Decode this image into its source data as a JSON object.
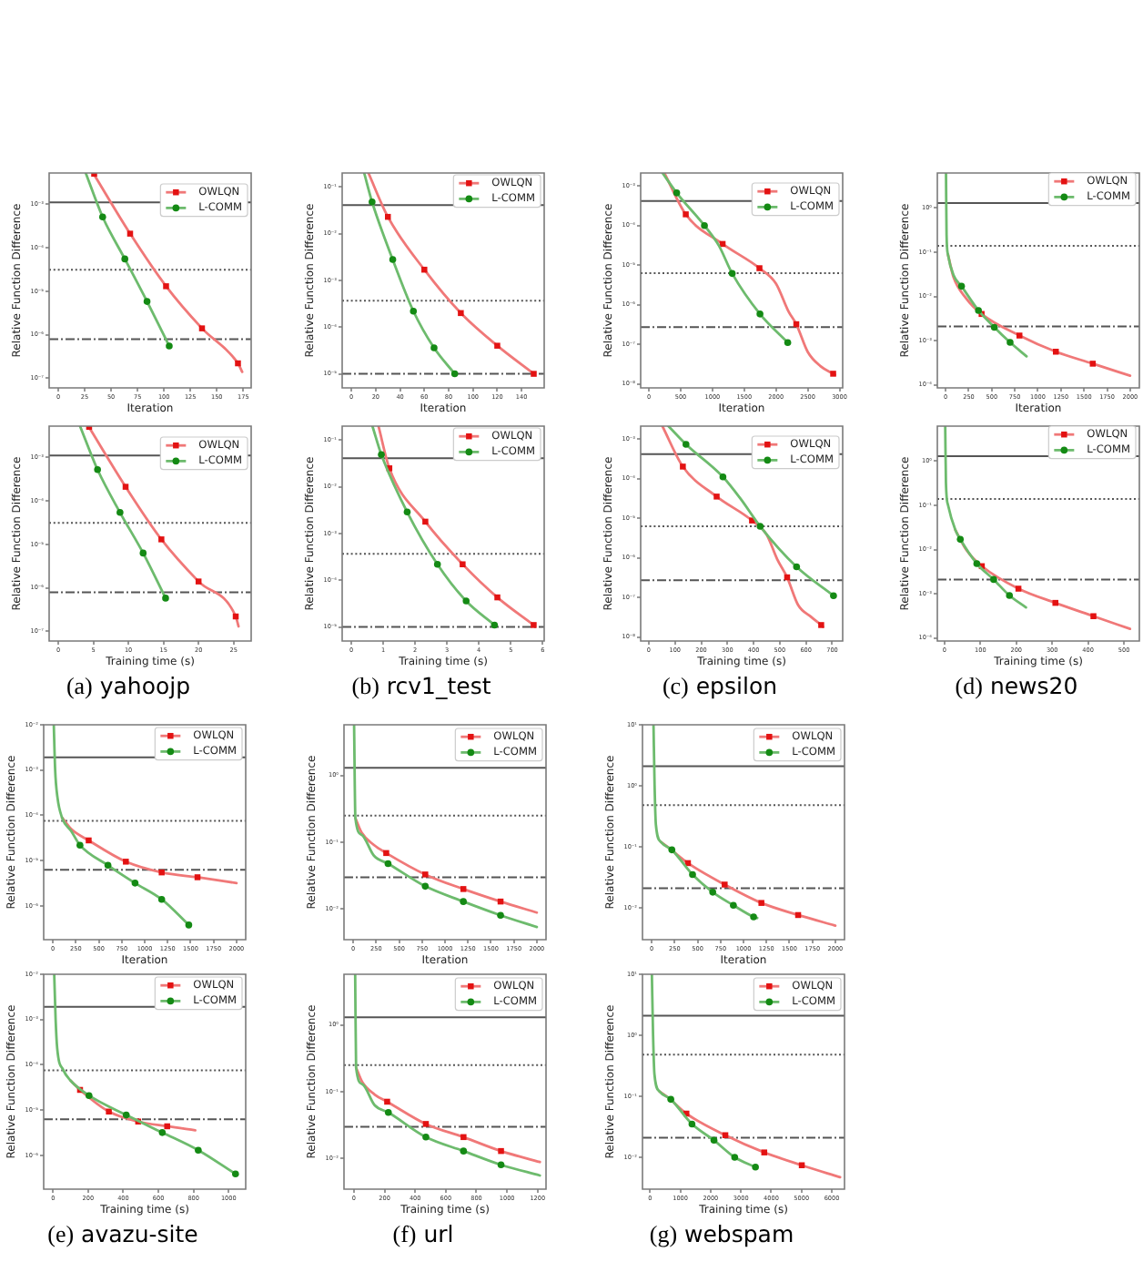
{
  "chart_data": [
    {
      "type": "line",
      "xlabel": "Iteration",
      "ylabel": "Relative Function Difference",
      "log": "y",
      "legend": "top right",
      "xlim": [
        -8.6,
        182.5
      ],
      "xticks": [
        0,
        25,
        50,
        75,
        100,
        125,
        150,
        175
      ],
      "ylim": [
        6.2e-08,
        0.0052
      ],
      "yticks": [
        {
          "value": 0.001,
          "label": "10⁻³"
        },
        {
          "value": 0.0001,
          "label": "10⁻⁴"
        },
        {
          "value": 1e-05,
          "label": "10⁻⁵"
        },
        {
          "value": 1e-06,
          "label": "10⁻⁶"
        },
        {
          "value": 1e-07,
          "label": "10⁻⁷"
        }
      ],
      "ref_lines": [
        {
          "axis": "y",
          "value": 0.0011,
          "color": "#555555",
          "line_style": "solid"
        },
        {
          "axis": "y",
          "value": 3.1e-05,
          "color": "#555555",
          "line_style": "dotted"
        },
        {
          "axis": "y",
          "value": 7.9e-07,
          "color": "#555555",
          "line_style": "dashdot"
        }
      ],
      "series": [
        {
          "name": "OWLQN",
          "type": "line",
          "color": "#f07878",
          "x": [
            33,
            68,
            102,
            136,
            170,
            174
          ],
          "values": [
            0.0052,
            0.00021,
            1.3e-05,
            1.4e-06,
            2.2e-07,
            1.4e-07
          ]
        },
        {
          "type": "scatter",
          "color": "#e31212",
          "marker": "square",
          "x": [
            34,
            68,
            102,
            136,
            170
          ],
          "values": [
            0.005,
            0.00021,
            1.3e-05,
            1.4e-06,
            2.2e-07
          ]
        },
        {
          "name": "L-COMM",
          "type": "line",
          "color": "#6dbb6d",
          "x": [
            26,
            42,
            63,
            84,
            105
          ],
          "values": [
            0.0052,
            0.00051,
            5.5e-05,
            5.8e-06,
            5.5e-07
          ]
        },
        {
          "type": "scatter",
          "color": "#148a14",
          "marker": "circle",
          "x": [
            42,
            63,
            84,
            105
          ],
          "values": [
            0.00051,
            5.5e-05,
            5.8e-06,
            5.5e-07
          ]
        }
      ]
    },
    {
      "type": "line",
      "xlabel": "Iteration",
      "ylabel": "Relative Function Difference",
      "log": "y",
      "legend": "top right",
      "xlim": [
        -7.6,
        158.6
      ],
      "xticks": [
        0,
        20,
        40,
        60,
        80,
        100,
        120,
        140
      ],
      "ylim": [
        5e-06,
        0.2
      ],
      "yticks": [
        {
          "value": 0.1,
          "label": "10⁻¹"
        },
        {
          "value": 0.01,
          "label": "10⁻²"
        },
        {
          "value": 0.001,
          "label": "10⁻³"
        },
        {
          "value": 0.0001,
          "label": "10⁻⁴"
        },
        {
          "value": 1e-05,
          "label": "10⁻⁵"
        }
      ],
      "ref_lines": [
        {
          "axis": "y",
          "value": 0.041,
          "color": "#555555",
          "line_style": "solid"
        },
        {
          "axis": "y",
          "value": 0.00037,
          "color": "#555555",
          "line_style": "dotted"
        },
        {
          "axis": "y",
          "value": 1e-05,
          "color": "#555555",
          "line_style": "dashdot"
        }
      ],
      "series": [
        {
          "name": "OWLQN",
          "type": "line",
          "color": "#f07878",
          "x": [
            14,
            30,
            60,
            90,
            120,
            150
          ],
          "values": [
            0.2,
            0.023,
            0.0017,
            0.0002,
            4e-05,
            1e-05
          ]
        },
        {
          "type": "scatter",
          "color": "#e31212",
          "marker": "square",
          "x": [
            30,
            60,
            90,
            120,
            150
          ],
          "values": [
            0.023,
            0.0017,
            0.0002,
            4e-05,
            1e-05
          ]
        },
        {
          "name": "L-COMM",
          "type": "line",
          "color": "#6dbb6d",
          "x": [
            10.5,
            17,
            34,
            51,
            68,
            85
          ],
          "values": [
            0.2,
            0.048,
            0.0028,
            0.00022,
            3.6e-05,
            1e-05
          ]
        },
        {
          "type": "scatter",
          "color": "#148a14",
          "marker": "circle",
          "x": [
            17,
            34,
            51,
            68,
            85
          ],
          "values": [
            0.048,
            0.0028,
            0.00022,
            3.6e-05,
            1e-05
          ]
        }
      ]
    },
    {
      "type": "line",
      "xlabel": "Iteration",
      "ylabel": "Relative Function Difference",
      "log": "y",
      "legend": "top right",
      "xlim": [
        -130,
        3050
      ],
      "xticks": [
        0,
        500,
        1000,
        1500,
        2000,
        2500,
        3000
      ],
      "ylim": [
        7.9e-09,
        0.0021
      ],
      "yticks": [
        {
          "value": 0.001,
          "label": "10⁻³"
        },
        {
          "value": 0.0001,
          "label": "10⁻⁴"
        },
        {
          "value": 1e-05,
          "label": "10⁻⁵"
        },
        {
          "value": 1e-06,
          "label": "10⁻⁶"
        },
        {
          "value": 1e-07,
          "label": "10⁻⁷"
        },
        {
          "value": 1e-08,
          "label": "10⁻⁸"
        }
      ],
      "ref_lines": [
        {
          "axis": "y",
          "value": 0.00041,
          "color": "#555555",
          "line_style": "solid"
        },
        {
          "axis": "y",
          "value": 6.2e-06,
          "color": "#555555",
          "line_style": "dotted"
        },
        {
          "axis": "y",
          "value": 2.7e-07,
          "color": "#555555",
          "line_style": "dashdot"
        }
      ],
      "series": [
        {
          "name": "OWLQN",
          "type": "line",
          "color": "#f07878",
          "x": [
            243,
            580,
            1160,
            1740,
            2000,
            2200,
            2320,
            2500,
            2700,
            2900,
            2930
          ],
          "values": [
            0.0021,
            0.00019,
            3.4e-05,
            8.3e-06,
            3.4e-06,
            6.6e-07,
            3.2e-07,
            6.4e-08,
            2.8e-08,
            1.8e-08,
            1.7e-08
          ]
        },
        {
          "type": "scatter",
          "color": "#e31212",
          "marker": "square",
          "x": [
            580,
            1160,
            1740,
            2320,
            2900
          ],
          "values": [
            0.00019,
            3.4e-05,
            8.3e-06,
            3.2e-07,
            1.8e-08
          ]
        },
        {
          "name": "L-COMM",
          "type": "line",
          "color": "#6dbb6d",
          "x": [
            214,
            437,
            874,
            1100,
            1311,
            1748,
            2185
          ],
          "values": [
            0.0021,
            0.00066,
            9.9e-05,
            3.1e-05,
            6.1e-06,
            5.8e-07,
            1.1e-07
          ]
        },
        {
          "type": "scatter",
          "color": "#148a14",
          "marker": "circle",
          "x": [
            437,
            874,
            1311,
            1748,
            2185
          ],
          "values": [
            0.00066,
            9.9e-05,
            6.1e-06,
            5.8e-07,
            1.1e-07
          ]
        }
      ]
    },
    {
      "type": "line",
      "xlabel": "Iteration",
      "ylabel": "Relative Function Difference",
      "log": "y",
      "legend": "top right",
      "xlim": [
        -90,
        2100
      ],
      "xticks": [
        0,
        250,
        500,
        750,
        1000,
        1250,
        1500,
        1750,
        2000
      ],
      "ylim": [
        8.5e-05,
        6.2
      ],
      "yticks": [
        {
          "value": 1,
          "label": "10⁰"
        },
        {
          "value": 0.1,
          "label": "10⁻¹"
        },
        {
          "value": 0.01,
          "label": "10⁻²"
        },
        {
          "value": 0.001,
          "label": "10⁻³"
        },
        {
          "value": 0.0001,
          "label": "10⁻⁴"
        }
      ],
      "ref_lines": [
        {
          "axis": "y",
          "value": 1.3,
          "color": "#555555",
          "line_style": "solid"
        },
        {
          "axis": "y",
          "value": 0.14,
          "color": "#555555",
          "line_style": "dotted"
        },
        {
          "axis": "y",
          "value": 0.0021,
          "color": "#555555",
          "line_style": "dashdot"
        }
      ],
      "series": [
        {
          "name": "OWLQN",
          "type": "line",
          "color": "#f07878",
          "x": [
            25,
            86,
            218,
            390,
            800,
            1195,
            1595,
            2000
          ],
          "values": [
            0.089,
            0.027,
            0.0093,
            0.004,
            0.0013,
            0.00056,
            0.0003,
            0.00016
          ]
        },
        {
          "type": "scatter",
          "color": "#e31212",
          "marker": "square",
          "x": [
            390,
            800,
            1195,
            1595
          ],
          "values": [
            0.004,
            0.0013,
            0.00056,
            0.0003
          ]
        },
        {
          "name": "L-COMM",
          "type": "line",
          "color": "#6dbb6d",
          "x": [
            4,
            10,
            25,
            86,
            172,
            356,
            528,
            699,
            877
          ],
          "values": [
            6.0,
            0.25,
            0.089,
            0.03,
            0.017,
            0.0048,
            0.002,
            0.00091,
            0.00044
          ]
        },
        {
          "type": "scatter",
          "color": "#148a14",
          "marker": "circle",
          "x": [
            172,
            356,
            528,
            699
          ],
          "values": [
            0.017,
            0.0048,
            0.002,
            0.00091
          ]
        }
      ]
    },
    {
      "type": "line",
      "xlabel": "Training time (s)",
      "ylabel": "Relative Function Difference",
      "log": "y",
      "legend": "top right",
      "xlim": [
        -1.3,
        27.5
      ],
      "xticks": [
        0,
        5,
        10,
        15,
        20,
        25
      ],
      "ylim": [
        6.2e-08,
        0.0052
      ],
      "yticks": [
        {
          "value": 0.001,
          "label": "10⁻³"
        },
        {
          "value": 0.0001,
          "label": "10⁻⁴"
        },
        {
          "value": 1e-05,
          "label": "10⁻⁵"
        },
        {
          "value": 1e-06,
          "label": "10⁻⁶"
        },
        {
          "value": 1e-07,
          "label": "10⁻⁷"
        }
      ],
      "ref_lines": [
        {
          "axis": "y",
          "value": 0.0011,
          "color": "#555555",
          "line_style": "solid"
        },
        {
          "axis": "y",
          "value": 3.1e-05,
          "color": "#555555",
          "line_style": "dotted"
        },
        {
          "axis": "y",
          "value": 7.9e-07,
          "color": "#555555",
          "line_style": "dashdot"
        }
      ],
      "series": [
        {
          "name": "OWLQN",
          "type": "line",
          "color": "#f07878",
          "x": [
            4.3,
            9.6,
            14.7,
            20.0,
            25.3,
            25.7
          ],
          "values": [
            0.0052,
            0.00021,
            1.3e-05,
            1.4e-06,
            2.2e-07,
            1.3e-07
          ]
        },
        {
          "type": "scatter",
          "color": "#e31212",
          "marker": "square",
          "x": [
            4.4,
            9.6,
            14.7,
            20.0,
            25.3
          ],
          "values": [
            0.005,
            0.00021,
            1.3e-05,
            1.4e-06,
            2.2e-07
          ]
        },
        {
          "name": "L-COMM",
          "type": "line",
          "color": "#6dbb6d",
          "x": [
            3.1,
            5.6,
            8.8,
            12.1,
            15.3
          ],
          "values": [
            0.0052,
            0.00052,
            5.4e-05,
            6.3e-06,
            5.8e-07
          ]
        },
        {
          "type": "scatter",
          "color": "#148a14",
          "marker": "circle",
          "x": [
            5.6,
            8.8,
            12.1,
            15.3
          ],
          "values": [
            0.00052,
            5.4e-05,
            6.3e-06,
            5.8e-07
          ]
        }
      ],
      "annotations": [
        "(a) yahoojp"
      ]
    },
    {
      "type": "line",
      "xlabel": "Training time (s)",
      "ylabel": "Relative Function Difference",
      "log": "y",
      "legend": "top right",
      "xlim": [
        -0.29,
        6.05
      ],
      "xticks": [
        0,
        1,
        2,
        3,
        4,
        5,
        6
      ],
      "ylim": [
        5e-06,
        0.2
      ],
      "yticks": [
        {
          "value": 0.1,
          "label": "10⁻¹"
        },
        {
          "value": 0.01,
          "label": "10⁻²"
        },
        {
          "value": 0.001,
          "label": "10⁻³"
        },
        {
          "value": 0.0001,
          "label": "10⁻⁴"
        },
        {
          "value": 1e-05,
          "label": "10⁻⁵"
        }
      ],
      "ref_lines": [
        {
          "axis": "y",
          "value": 0.041,
          "color": "#555555",
          "line_style": "solid"
        },
        {
          "axis": "y",
          "value": 0.00037,
          "color": "#555555",
          "line_style": "dotted"
        },
        {
          "axis": "y",
          "value": 1e-05,
          "color": "#555555",
          "line_style": "dashdot"
        }
      ],
      "series": [
        {
          "name": "OWLQN",
          "type": "line",
          "color": "#f07878",
          "x": [
            0.85,
            1.19,
            2.32,
            3.49,
            4.58,
            5.72
          ],
          "values": [
            0.2,
            0.025,
            0.0018,
            0.00022,
            4.3e-05,
            1.1e-05
          ]
        },
        {
          "type": "scatter",
          "color": "#e31212",
          "marker": "square",
          "x": [
            1.19,
            2.32,
            3.49,
            4.58,
            5.72
          ],
          "values": [
            0.025,
            0.0018,
            0.00022,
            4.3e-05,
            1.1e-05
          ]
        },
        {
          "name": "L-COMM",
          "type": "line",
          "color": "#6dbb6d",
          "x": [
            0.66,
            0.94,
            1.75,
            2.7,
            3.6,
            4.49
          ],
          "values": [
            0.2,
            0.049,
            0.0029,
            0.00022,
            3.6e-05,
            1.1e-05
          ]
        },
        {
          "type": "scatter",
          "color": "#148a14",
          "marker": "circle",
          "x": [
            0.94,
            1.75,
            2.7,
            3.6,
            4.49
          ],
          "values": [
            0.049,
            0.0029,
            0.00022,
            3.6e-05,
            1.1e-05
          ]
        }
      ],
      "annotations": [
        "(b) rcv1_test"
      ]
    },
    {
      "type": "line",
      "xlabel": "Training time (s)",
      "ylabel": "Relative Function Difference",
      "log": "y",
      "legend": "top right",
      "xlim": [
        -31,
        740
      ],
      "xticks": [
        0,
        100,
        200,
        300,
        400,
        500,
        600,
        700
      ],
      "ylim": [
        7.9e-09,
        0.0021
      ],
      "yticks": [
        {
          "value": 0.001,
          "label": "10⁻³"
        },
        {
          "value": 0.0001,
          "label": "10⁻⁴"
        },
        {
          "value": 1e-05,
          "label": "10⁻⁵"
        },
        {
          "value": 1e-06,
          "label": "10⁻⁶"
        },
        {
          "value": 1e-07,
          "label": "10⁻⁷"
        },
        {
          "value": 1e-08,
          "label": "10⁻⁸"
        }
      ],
      "ref_lines": [
        {
          "axis": "y",
          "value": 0.00041,
          "color": "#555555",
          "line_style": "solid"
        },
        {
          "axis": "y",
          "value": 6.2e-06,
          "color": "#555555",
          "line_style": "dotted"
        },
        {
          "axis": "y",
          "value": 2.7e-07,
          "color": "#555555",
          "line_style": "dashdot"
        }
      ],
      "series": [
        {
          "name": "OWLQN",
          "type": "line",
          "color": "#f07878",
          "x": [
            52,
            130,
            259,
            394,
            450,
            490,
            528,
            570,
            620,
            658,
            665
          ],
          "values": [
            0.0021,
            0.0002,
            3.5e-05,
            8.7e-06,
            3.8e-06,
            9.2e-07,
            3.2e-07,
            6.4e-08,
            3.2e-08,
            2e-08,
            1.8e-08
          ]
        },
        {
          "type": "scatter",
          "color": "#e31212",
          "marker": "square",
          "x": [
            130,
            259,
            394,
            528,
            658
          ],
          "values": [
            0.0002,
            3.5e-05,
            8.7e-06,
            3.2e-07,
            2e-08
          ]
        },
        {
          "name": "L-COMM",
          "type": "line",
          "color": "#6dbb6d",
          "x": [
            75,
            142,
            283,
            350,
            425,
            564,
            705
          ],
          "values": [
            0.0021,
            0.00073,
            0.00011,
            3.1e-05,
            6.2e-06,
            5.9e-07,
            1.1e-07
          ]
        },
        {
          "type": "scatter",
          "color": "#148a14",
          "marker": "circle",
          "x": [
            142,
            283,
            425,
            564,
            705
          ],
          "values": [
            0.00073,
            0.00011,
            6.2e-06,
            5.9e-07,
            1.1e-07
          ]
        }
      ],
      "annotations": [
        "(c) epsilon"
      ]
    },
    {
      "type": "line",
      "xlabel": "Training time (s)",
      "ylabel": "Relative Function Difference",
      "log": "y",
      "legend": "top right",
      "xlim": [
        -20,
        543
      ],
      "xticks": [
        0,
        100,
        200,
        300,
        400,
        500
      ],
      "ylim": [
        8.5e-05,
        6.2
      ],
      "yticks": [
        {
          "value": 1,
          "label": "10⁰"
        },
        {
          "value": 0.1,
          "label": "10⁻¹"
        },
        {
          "value": 0.01,
          "label": "10⁻²"
        },
        {
          "value": 0.001,
          "label": "10⁻³"
        },
        {
          "value": 0.0001,
          "label": "10⁻⁴"
        }
      ],
      "ref_lines": [
        {
          "axis": "y",
          "value": 1.3,
          "color": "#555555",
          "line_style": "solid"
        },
        {
          "axis": "y",
          "value": 0.14,
          "color": "#555555",
          "line_style": "dotted"
        },
        {
          "axis": "y",
          "value": 0.0021,
          "color": "#555555",
          "line_style": "dashdot"
        }
      ],
      "series": [
        {
          "name": "OWLQN",
          "type": "line",
          "color": "#f07878",
          "x": [
            30,
            60,
            104,
            206,
            309,
            415,
            517
          ],
          "values": [
            0.028,
            0.01,
            0.0042,
            0.0013,
            0.00062,
            0.00031,
            0.00016
          ]
        },
        {
          "type": "scatter",
          "color": "#e31212",
          "marker": "square",
          "x": [
            104,
            206,
            309,
            415
          ],
          "values": [
            0.0042,
            0.0013,
            0.00062,
            0.00031
          ]
        },
        {
          "name": "L-COMM",
          "type": "line",
          "color": "#6dbb6d",
          "x": [
            2,
            4,
            10,
            30,
            44,
            90,
            137,
            181,
            227
          ],
          "values": [
            6.0,
            0.32,
            0.1,
            0.028,
            0.017,
            0.0048,
            0.0021,
            0.00091,
            0.00049
          ]
        },
        {
          "type": "scatter",
          "color": "#148a14",
          "marker": "circle",
          "x": [
            44,
            90,
            137,
            181
          ],
          "values": [
            0.017,
            0.0048,
            0.0021,
            0.00091
          ]
        }
      ],
      "annotations": [
        "(d) news20"
      ]
    },
    {
      "type": "line",
      "xlabel": "Iteration",
      "ylabel": "Relative Function Difference",
      "log": "y",
      "legend": "top right",
      "xlim": [
        -100,
        2100
      ],
      "xticks": [
        0,
        250,
        500,
        750,
        1000,
        1250,
        1500,
        1750,
        2000
      ],
      "ylim": [
        1.8e-07,
        0.01
      ],
      "yticks": [
        {
          "value": 0.01,
          "label": "10⁻²"
        },
        {
          "value": 0.001,
          "label": "10⁻³"
        },
        {
          "value": 0.0001,
          "label": "10⁻⁴"
        },
        {
          "value": 1e-05,
          "label": "10⁻⁵"
        },
        {
          "value": 1e-06,
          "label": "10⁻⁶"
        }
      ],
      "ref_lines": [
        {
          "axis": "y",
          "value": 0.0019,
          "color": "#555555",
          "line_style": "solid"
        },
        {
          "axis": "y",
          "value": 7.6e-05,
          "color": "#555555",
          "line_style": "dotted"
        },
        {
          "axis": "y",
          "value": 6.3e-06,
          "color": "#555555",
          "line_style": "dashdot"
        }
      ],
      "series": [
        {
          "name": "OWLQN",
          "type": "line",
          "color": "#f07878",
          "x": [
            100,
            200,
            390,
            795,
            1185,
            1575,
            2000
          ],
          "values": [
            8.9e-05,
            5e-05,
            2.8e-05,
            9.5e-06,
            5.5e-06,
            4.3e-06,
            3.2e-06
          ]
        },
        {
          "type": "scatter",
          "color": "#e31212",
          "marker": "square",
          "x": [
            390,
            795,
            1185,
            1575
          ],
          "values": [
            2.8e-05,
            9.5e-06,
            5.5e-06,
            4.3e-06
          ]
        },
        {
          "name": "L-COMM",
          "type": "line",
          "color": "#6dbb6d",
          "x": [
            10,
            25,
            50,
            100,
            200,
            295,
            600,
            895,
            1185,
            1480
          ],
          "values": [
            0.01,
            0.001,
            0.00025,
            8.9e-05,
            4.5e-05,
            2.2e-05,
            7.9e-06,
            3.2e-06,
            1.4e-06,
            3.8e-07
          ]
        },
        {
          "type": "scatter",
          "color": "#148a14",
          "marker": "circle",
          "x": [
            295,
            600,
            895,
            1185,
            1480
          ],
          "values": [
            2.2e-05,
            7.9e-06,
            3.2e-06,
            1.4e-06,
            3.8e-07
          ]
        }
      ]
    },
    {
      "type": "line",
      "xlabel": "Iteration",
      "ylabel": "Relative Function Difference",
      "log": "y",
      "legend": "top right",
      "xlim": [
        -100,
        2100
      ],
      "xticks": [
        0,
        250,
        500,
        750,
        1000,
        1250,
        1500,
        1750,
        2000
      ],
      "ylim": [
        0.0035,
        5.7
      ],
      "yticks": [
        {
          "value": 1,
          "label": "10⁰"
        },
        {
          "value": 0.1,
          "label": "10⁻¹"
        },
        {
          "value": 0.01,
          "label": "10⁻²"
        }
      ],
      "ref_lines": [
        {
          "axis": "y",
          "value": 1.3,
          "color": "#555555",
          "line_style": "solid"
        },
        {
          "axis": "y",
          "value": 0.25,
          "color": "#555555",
          "line_style": "dotted"
        },
        {
          "axis": "y",
          "value": 0.03,
          "color": "#555555",
          "line_style": "dashdot"
        }
      ],
      "series": [
        {
          "name": "OWLQN",
          "type": "line",
          "color": "#f07878",
          "x": [
            24,
            91,
            226,
            360,
            785,
            1200,
            1605,
            2000
          ],
          "values": [
            0.23,
            0.14,
            0.091,
            0.069,
            0.033,
            0.02,
            0.013,
            0.0089
          ]
        },
        {
          "type": "scatter",
          "color": "#e31212",
          "marker": "square",
          "x": [
            360,
            785,
            1200,
            1605
          ],
          "values": [
            0.069,
            0.033,
            0.02,
            0.013
          ]
        },
        {
          "name": "L-COMM",
          "type": "line",
          "color": "#6dbb6d",
          "x": [
            10,
            24,
            91,
            226,
            380,
            785,
            1200,
            1605,
            2000
          ],
          "values": [
            5.7,
            0.23,
            0.13,
            0.063,
            0.048,
            0.022,
            0.013,
            0.0081,
            0.0054
          ]
        },
        {
          "type": "scatter",
          "color": "#148a14",
          "marker": "circle",
          "x": [
            380,
            785,
            1200,
            1605
          ],
          "values": [
            0.048,
            0.022,
            0.013,
            0.0081
          ]
        }
      ]
    },
    {
      "type": "line",
      "xlabel": "Iteration",
      "ylabel": "Relative Function Difference",
      "log": "y",
      "legend": "top right",
      "xlim": [
        -100,
        2100
      ],
      "xticks": [
        0,
        250,
        500,
        750,
        1000,
        1250,
        1500,
        1750,
        2000
      ],
      "ylim": [
        0.003,
        10
      ],
      "yticks": [
        {
          "value": 10,
          "label": "10¹"
        },
        {
          "value": 1,
          "label": "10⁰"
        },
        {
          "value": 0.1,
          "label": "10⁻¹"
        },
        {
          "value": 0.01,
          "label": "10⁻²"
        }
      ],
      "ref_lines": [
        {
          "axis": "y",
          "value": 2.1,
          "color": "#555555",
          "line_style": "solid"
        },
        {
          "axis": "y",
          "value": 0.48,
          "color": "#555555",
          "line_style": "dotted"
        },
        {
          "axis": "y",
          "value": 0.021,
          "color": "#555555",
          "line_style": "dashdot"
        }
      ],
      "series": [
        {
          "name": "OWLQN",
          "type": "line",
          "color": "#f07878",
          "x": [
            100,
            190,
            395,
            795,
            1195,
            1595,
            2000
          ],
          "values": [
            0.12,
            0.095,
            0.054,
            0.024,
            0.012,
            0.0076,
            0.0051
          ]
        },
        {
          "type": "scatter",
          "color": "#e31212",
          "marker": "square",
          "x": [
            395,
            795,
            1195,
            1595
          ],
          "values": [
            0.054,
            0.024,
            0.012,
            0.0076
          ]
        },
        {
          "name": "L-COMM",
          "type": "line",
          "color": "#6dbb6d",
          "x": [
            20,
            32,
            46,
            100,
            220,
            445,
            665,
            890,
            1110,
            1150
          ],
          "values": [
            10,
            1.0,
            0.23,
            0.12,
            0.089,
            0.035,
            0.018,
            0.011,
            0.0071,
            0.0068
          ]
        },
        {
          "type": "scatter",
          "color": "#148a14",
          "marker": "circle",
          "x": [
            220,
            445,
            665,
            890,
            1110
          ],
          "values": [
            0.089,
            0.035,
            0.018,
            0.011,
            0.0071
          ]
        }
      ]
    },
    {
      "type": "line",
      "xlabel": "Training time (s)",
      "ylabel": "Relative Function Difference",
      "log": "y",
      "legend": "top right",
      "xlim": [
        -53,
        1097
      ],
      "xticks": [
        0,
        200,
        400,
        600,
        800,
        1000
      ],
      "ylim": [
        1.8e-07,
        0.01
      ],
      "yticks": [
        {
          "value": 0.01,
          "label": "10⁻²"
        },
        {
          "value": 0.001,
          "label": "10⁻³"
        },
        {
          "value": 0.0001,
          "label": "10⁻⁴"
        },
        {
          "value": 1e-05,
          "label": "10⁻⁵"
        },
        {
          "value": 1e-06,
          "label": "10⁻⁶"
        }
      ],
      "ref_lines": [
        {
          "axis": "y",
          "value": 0.0019,
          "color": "#555555",
          "line_style": "solid"
        },
        {
          "axis": "y",
          "value": 7.6e-05,
          "color": "#555555",
          "line_style": "dotted"
        },
        {
          "axis": "y",
          "value": 6.3e-06,
          "color": "#555555",
          "line_style": "dashdot"
        }
      ],
      "series": [
        {
          "name": "OWLQN",
          "type": "line",
          "color": "#f07878",
          "x": [
            100,
            154,
            318,
            485,
            650,
            810
          ],
          "values": [
            4.5e-05,
            2.8e-05,
            9.3e-06,
            5.6e-06,
            4.4e-06,
            3.6e-06
          ]
        },
        {
          "type": "scatter",
          "color": "#e31212",
          "marker": "square",
          "x": [
            154,
            318,
            485,
            650
          ],
          "values": [
            2.8e-05,
            9.3e-06,
            5.6e-06,
            4.4e-06
          ]
        },
        {
          "name": "L-COMM",
          "type": "line",
          "color": "#6dbb6d",
          "x": [
            7,
            15,
            24,
            58,
            100,
            205,
            417,
            622,
            827,
            1039
          ],
          "values": [
            0.01,
            0.001,
            0.00023,
            7.8e-05,
            4.5e-05,
            2.1e-05,
            7.8e-06,
            3.2e-06,
            1.3e-06,
            3.9e-07
          ]
        },
        {
          "type": "scatter",
          "color": "#148a14",
          "marker": "circle",
          "x": [
            205,
            417,
            622,
            827,
            1039
          ],
          "values": [
            2.1e-05,
            7.8e-06,
            3.2e-06,
            1.3e-06,
            3.9e-07
          ]
        }
      ],
      "annotations": [
        "(e) avazu-site"
      ]
    },
    {
      "type": "line",
      "xlabel": "Training time (s)",
      "ylabel": "Relative Function Difference",
      "log": "y",
      "legend": "top right",
      "xlim": [
        -65,
        1255
      ],
      "xticks": [
        0,
        200,
        400,
        600,
        800,
        1000,
        1200
      ],
      "ylim": [
        0.0035,
        5.7
      ],
      "yticks": [
        {
          "value": 1,
          "label": "10⁰"
        },
        {
          "value": 0.1,
          "label": "10⁻¹"
        },
        {
          "value": 0.01,
          "label": "10⁻²"
        }
      ],
      "ref_lines": [
        {
          "axis": "y",
          "value": 1.3,
          "color": "#555555",
          "line_style": "solid"
        },
        {
          "axis": "y",
          "value": 0.25,
          "color": "#555555",
          "line_style": "dotted"
        },
        {
          "axis": "y",
          "value": 0.03,
          "color": "#555555",
          "line_style": "dashdot"
        }
      ],
      "series": [
        {
          "name": "OWLQN",
          "type": "line",
          "color": "#f07878",
          "x": [
            14,
            54,
            135,
            217,
            470,
            716,
            961,
            1215
          ],
          "values": [
            0.23,
            0.14,
            0.091,
            0.071,
            0.033,
            0.021,
            0.013,
            0.0089
          ]
        },
        {
          "type": "scatter",
          "color": "#e31212",
          "marker": "square",
          "x": [
            217,
            470,
            716,
            961
          ],
          "values": [
            0.071,
            0.033,
            0.021,
            0.013
          ]
        },
        {
          "name": "L-COMM",
          "type": "line",
          "color": "#6dbb6d",
          "x": [
            8,
            14,
            54,
            135,
            225,
            470,
            716,
            961,
            1215
          ],
          "values": [
            5.7,
            0.23,
            0.13,
            0.063,
            0.049,
            0.021,
            0.013,
            0.0081,
            0.0056
          ]
        },
        {
          "type": "scatter",
          "color": "#148a14",
          "marker": "circle",
          "x": [
            225,
            470,
            716,
            961
          ],
          "values": [
            0.049,
            0.021,
            0.013,
            0.0081
          ]
        }
      ],
      "annotations": [
        "(f) url"
      ]
    },
    {
      "type": "line",
      "xlabel": "Training time (s)",
      "ylabel": "Relative Function Difference",
      "log": "y",
      "legend": "top right",
      "xlim": [
        -250,
        6420
      ],
      "xticks": [
        0,
        1000,
        2000,
        3000,
        4000,
        5000,
        6000
      ],
      "ylim": [
        0.003,
        10
      ],
      "yticks": [
        {
          "value": 10,
          "label": "10¹"
        },
        {
          "value": 1,
          "label": "10⁰"
        },
        {
          "value": 0.1,
          "label": "10⁻¹"
        },
        {
          "value": 0.01,
          "label": "10⁻²"
        }
      ],
      "ref_lines": [
        {
          "axis": "y",
          "value": 2.1,
          "color": "#555555",
          "line_style": "solid"
        },
        {
          "axis": "y",
          "value": 0.48,
          "color": "#555555",
          "line_style": "dotted"
        },
        {
          "axis": "y",
          "value": 0.021,
          "color": "#555555",
          "line_style": "dashdot"
        }
      ],
      "series": [
        {
          "name": "OWLQN",
          "type": "line",
          "color": "#f07878",
          "x": [
            311,
            600,
            1200,
            2485,
            3770,
            5010,
            6275
          ],
          "values": [
            0.12,
            0.095,
            0.052,
            0.023,
            0.012,
            0.0074,
            0.0047
          ]
        },
        {
          "type": "scatter",
          "color": "#e31212",
          "marker": "square",
          "x": [
            1200,
            2485,
            3770,
            5010
          ],
          "values": [
            0.052,
            0.023,
            0.012,
            0.0074
          ]
        },
        {
          "name": "L-COMM",
          "type": "line",
          "color": "#6dbb6d",
          "x": [
            60,
            100,
            145,
            311,
            685,
            1385,
            2110,
            2795,
            3480
          ],
          "values": [
            10,
            1.0,
            0.23,
            0.12,
            0.089,
            0.035,
            0.019,
            0.01,
            0.0069
          ]
        },
        {
          "type": "scatter",
          "color": "#148a14",
          "marker": "circle",
          "x": [
            685,
            1385,
            2110,
            2795,
            3480
          ],
          "values": [
            0.089,
            0.035,
            0.019,
            0.01,
            0.0069
          ]
        }
      ],
      "annotations": [
        "(g) webspam"
      ]
    }
  ]
}
